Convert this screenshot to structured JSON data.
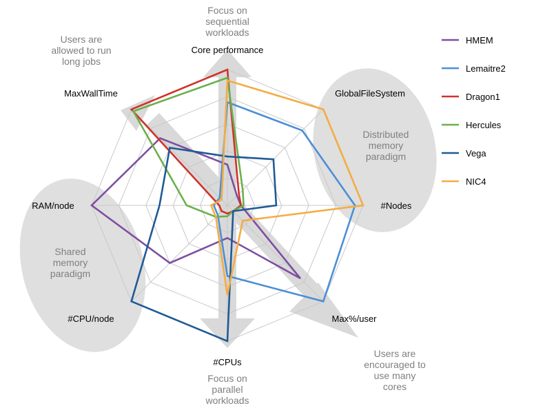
{
  "chart_data": {
    "type": "radar",
    "axes": [
      "Core performance",
      "GlobalFileSystem",
      "#Nodes",
      "Max%/user",
      "#CPUs",
      "#CPU/node",
      "RAM/node",
      "MaxWallTime"
    ],
    "range": [
      0,
      5
    ],
    "grid": true,
    "gridlines": 5,
    "legend_position": "right",
    "series": [
      {
        "name": "HMEM",
        "color": "#7e4ea2",
        "values": [
          1.5,
          0.5,
          0.5,
          3.8,
          1.2,
          3.0,
          5.0,
          3.5
        ]
      },
      {
        "name": "Lemaitre2",
        "color": "#4a8fd6",
        "values": [
          3.8,
          3.9,
          4.7,
          5.0,
          2.6,
          0.5,
          0.5,
          0.4
        ]
      },
      {
        "name": "Dragon1",
        "color": "#d0322a",
        "values": [
          5.0,
          0.6,
          0.5,
          0.3,
          0.3,
          0.3,
          0.3,
          5.0
        ]
      },
      {
        "name": "Hercules",
        "color": "#6ab04c",
        "values": [
          4.7,
          0.8,
          0.6,
          0.3,
          0.4,
          0.6,
          1.5,
          4.9
        ]
      },
      {
        "name": "Vega",
        "color": "#1f5a96",
        "values": [
          1.8,
          2.4,
          1.8,
          0.3,
          5.0,
          5.0,
          2.5,
          3.0
        ]
      },
      {
        "name": "NIC4",
        "color": "#f3ac43",
        "values": [
          4.6,
          5.0,
          5.0,
          0.8,
          3.3,
          0.6,
          0.6,
          0.3
        ]
      }
    ],
    "annotations": [
      {
        "id": "top",
        "lines": [
          "Focus on",
          "sequential",
          "workloads"
        ]
      },
      {
        "id": "topleft",
        "lines": [
          "Users are",
          "allowed to run",
          "long jobs"
        ]
      },
      {
        "id": "right",
        "lines": [
          "Distributed",
          "memory",
          "paradigm"
        ]
      },
      {
        "id": "left",
        "lines": [
          "Shared",
          "memory",
          "paradigm"
        ]
      },
      {
        "id": "bottom",
        "lines": [
          "Focus on",
          "parallel",
          "workloads"
        ]
      },
      {
        "id": "bottomright",
        "lines": [
          "Users are",
          "encouraged to",
          "use many",
          "cores"
        ]
      }
    ]
  }
}
